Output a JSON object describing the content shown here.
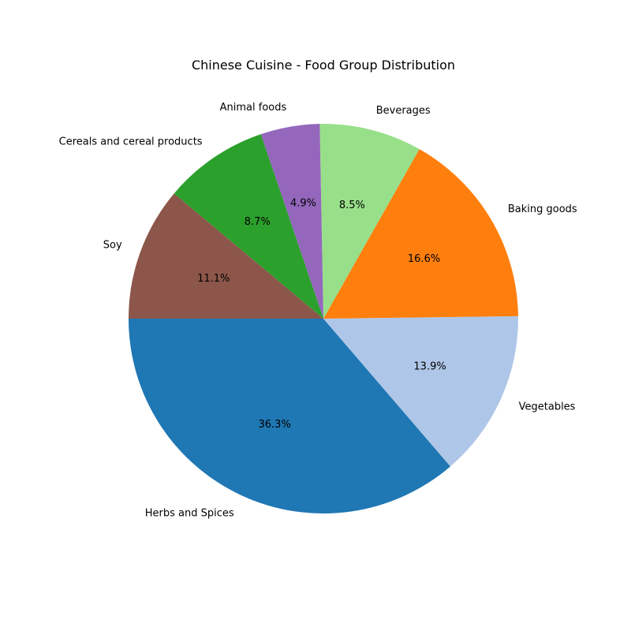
{
  "chart_data": {
    "type": "pie",
    "title": "Chinese Cuisine - Food Group Distribution",
    "slices": [
      {
        "label": "Herbs and Spices",
        "value": 36.3,
        "pct_label": "36.3%",
        "color": "#1f77b4"
      },
      {
        "label": "Vegetables",
        "value": 13.9,
        "pct_label": "13.9%",
        "color": "#aec7e8"
      },
      {
        "label": "Baking goods",
        "value": 16.6,
        "pct_label": "16.6%",
        "color": "#ff7f0e"
      },
      {
        "label": "Beverages",
        "value": 8.5,
        "pct_label": "8.5%",
        "color": "#98df8a"
      },
      {
        "label": "Animal foods",
        "value": 4.9,
        "pct_label": "4.9%",
        "color": "#9467bd"
      },
      {
        "label": "Cereals and cereal products",
        "value": 8.7,
        "pct_label": "8.7%",
        "color": "#2ca02c"
      },
      {
        "label": "Soy",
        "value": 11.1,
        "pct_label": "11.1%",
        "color": "#8c564b"
      }
    ],
    "start_angle_deg": 180,
    "direction": "counterclockwise",
    "legend": "none"
  }
}
